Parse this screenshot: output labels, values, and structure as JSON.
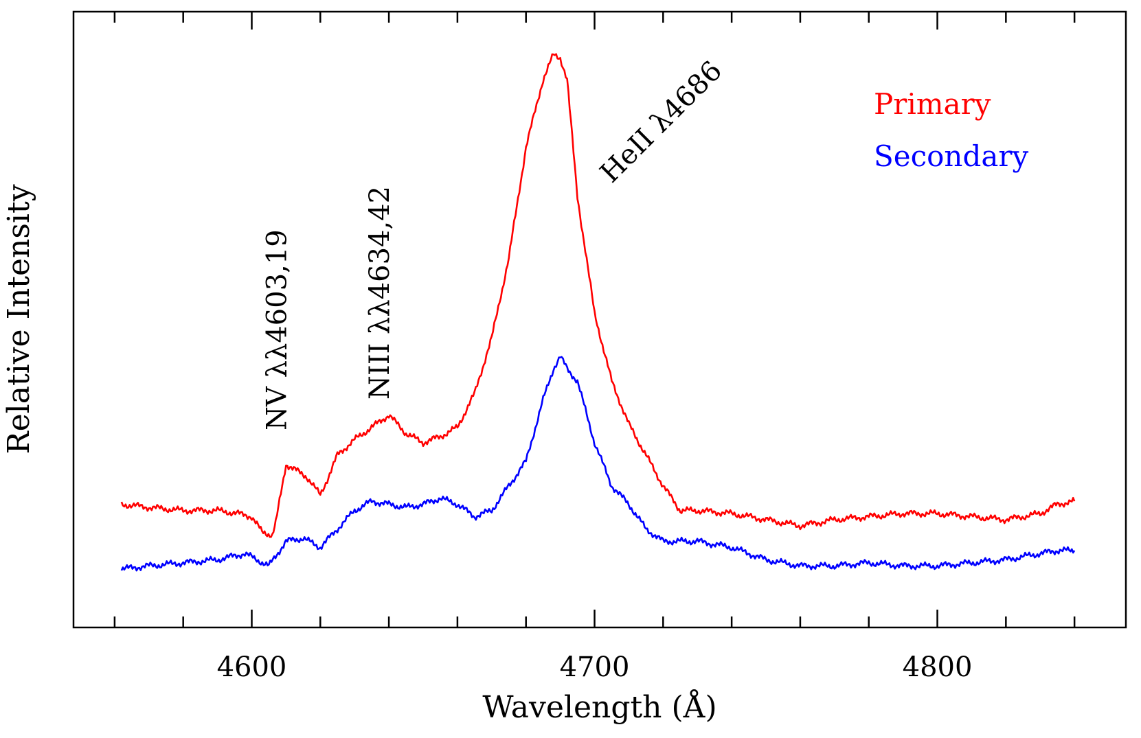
{
  "chart_data": {
    "type": "line",
    "title": "",
    "xlabel": "Wavelength (Å)",
    "ylabel": "Relative Intensity",
    "xlim": [
      4548,
      4855
    ],
    "ylim": [
      0,
      1.0
    ],
    "x_ticks": [
      4600,
      4700,
      4800
    ],
    "x_tick_labels": [
      "4600",
      "4700",
      "4800"
    ],
    "x_minor_step": 20,
    "y_ticks_shown": false,
    "grid": false,
    "legend_position": "top-right",
    "legend": [
      {
        "label": "Primary",
        "color": "#ff0000"
      },
      {
        "label": "Secondary",
        "color": "#0000ff"
      }
    ],
    "annotations": [
      {
        "text": "NV λλ4603,19",
        "x": 4610,
        "y": 0.32,
        "rotation": -90
      },
      {
        "text": "NIII λλ4634,42",
        "x": 4640,
        "y": 0.37,
        "rotation": -90
      },
      {
        "text": "HeII λ4686",
        "x": 4705,
        "y": 0.72,
        "rotation": -45
      }
    ],
    "series": [
      {
        "name": "Primary",
        "color": "#ff0000",
        "x": [
          4562,
          4570,
          4580,
          4590,
          4596,
          4600,
          4603,
          4606,
          4607,
          4610,
          4613,
          4616,
          4620,
          4622,
          4625,
          4630,
          4635,
          4640,
          4645,
          4650,
          4655,
          4660,
          4665,
          4670,
          4675,
          4680,
          4685,
          4688,
          4690,
          4692,
          4695,
          4700,
          4705,
          4710,
          4715,
          4720,
          4725,
          4730,
          4740,
          4750,
          4760,
          4770,
          4780,
          4790,
          4800,
          4810,
          4820,
          4830,
          4835,
          4840
        ],
        "y": [
          0.2,
          0.195,
          0.19,
          0.19,
          0.185,
          0.18,
          0.155,
          0.15,
          0.17,
          0.265,
          0.255,
          0.245,
          0.215,
          0.24,
          0.28,
          0.305,
          0.325,
          0.345,
          0.315,
          0.3,
          0.31,
          0.325,
          0.38,
          0.47,
          0.6,
          0.78,
          0.89,
          0.93,
          0.925,
          0.89,
          0.7,
          0.51,
          0.4,
          0.33,
          0.28,
          0.23,
          0.19,
          0.19,
          0.185,
          0.175,
          0.165,
          0.175,
          0.18,
          0.185,
          0.185,
          0.18,
          0.175,
          0.185,
          0.2,
          0.205
        ]
      },
      {
        "name": "Secondary",
        "color": "#0000ff",
        "x": [
          4562,
          4570,
          4580,
          4590,
          4598,
          4605,
          4610,
          4615,
          4620,
          4625,
          4630,
          4635,
          4640,
          4645,
          4650,
          4655,
          4660,
          4665,
          4670,
          4675,
          4680,
          4685,
          4688,
          4690,
          4692,
          4695,
          4700,
          4705,
          4710,
          4715,
          4720,
          4725,
          4730,
          4740,
          4750,
          4760,
          4770,
          4780,
          4790,
          4800,
          4810,
          4820,
          4830,
          4835,
          4840
        ],
        "y": [
          0.095,
          0.1,
          0.105,
          0.11,
          0.12,
          0.1,
          0.14,
          0.145,
          0.13,
          0.16,
          0.19,
          0.205,
          0.2,
          0.195,
          0.2,
          0.21,
          0.2,
          0.18,
          0.19,
          0.23,
          0.27,
          0.37,
          0.42,
          0.44,
          0.42,
          0.4,
          0.3,
          0.23,
          0.2,
          0.16,
          0.14,
          0.14,
          0.14,
          0.13,
          0.11,
          0.1,
          0.1,
          0.105,
          0.1,
          0.1,
          0.105,
          0.11,
          0.12,
          0.125,
          0.125
        ]
      }
    ]
  }
}
